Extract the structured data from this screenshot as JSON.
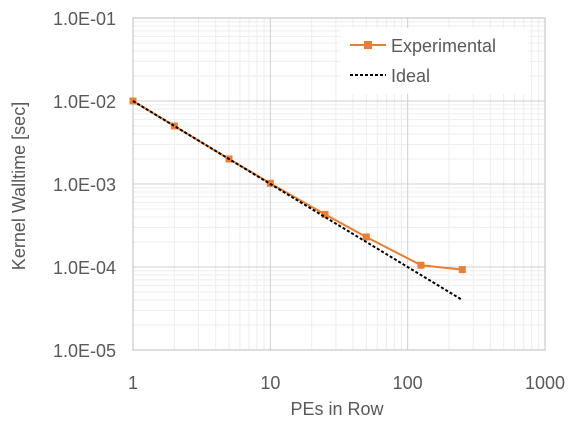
{
  "chart_data": {
    "type": "line",
    "title": "",
    "xlabel": "PEs in Row",
    "ylabel": "Kernel Walltime [sec]",
    "x_scale": "log",
    "y_scale": "log",
    "xlim": [
      1,
      1000
    ],
    "ylim": [
      1e-05,
      0.1
    ],
    "x_ticks": [
      {
        "value": 1,
        "label": "1"
      },
      {
        "value": 10,
        "label": "10"
      },
      {
        "value": 100,
        "label": "100"
      },
      {
        "value": 1000,
        "label": "1000"
      }
    ],
    "y_ticks": [
      {
        "value": 0.1,
        "label": "1.0E-01"
      },
      {
        "value": 0.01,
        "label": "1.0E-02"
      },
      {
        "value": 0.001,
        "label": "1.0E-03"
      },
      {
        "value": 0.0001,
        "label": "1.0E-04"
      },
      {
        "value": 1e-05,
        "label": "1.0E-05"
      }
    ],
    "grid": "major and minor",
    "legend_position": "top-right",
    "series": [
      {
        "name": "Experimental",
        "color": "#ED7D31",
        "style": "solid",
        "marker": "square",
        "points": [
          {
            "x": 1,
            "y": 0.01
          },
          {
            "x": 2,
            "y": 0.005
          },
          {
            "x": 5,
            "y": 0.002
          },
          {
            "x": 10,
            "y": 0.00102
          },
          {
            "x": 25,
            "y": 0.00043
          },
          {
            "x": 50,
            "y": 0.00023
          },
          {
            "x": 125,
            "y": 0.000105
          },
          {
            "x": 250,
            "y": 9.3e-05
          }
        ]
      },
      {
        "name": "Ideal",
        "color": "#000000",
        "style": "dashed",
        "marker": "none",
        "points": [
          {
            "x": 1,
            "y": 0.01
          },
          {
            "x": 250,
            "y": 4e-05
          }
        ]
      }
    ]
  }
}
